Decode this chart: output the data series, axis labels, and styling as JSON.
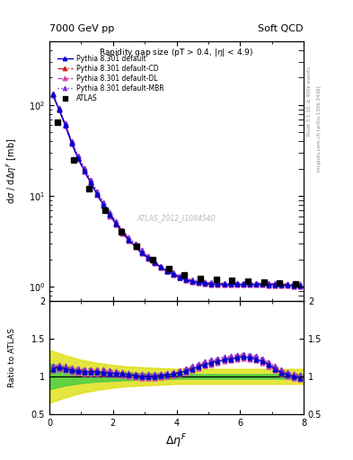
{
  "title_left": "7000 GeV pp",
  "title_right": "Soft QCD",
  "plot_title": "Rapidity gap size (pT > 0.4, |$\\eta$| < 4.9)",
  "xlabel": "$\\Delta\\eta^F$",
  "ylabel_main": "d$\\sigma$ / d$\\Delta\\eta^F$ [mb]",
  "ylabel_ratio": "Ratio to ATLAS",
  "watermark": "ATLAS_2012_I1084540",
  "right_label1": "Rivet 3.1.10, ≥ 400k events",
  "right_label2": "mcplots.cern.ch [arXiv:1306.3436]",
  "xlim": [
    0,
    8
  ],
  "ylim_main": [
    0.7,
    500
  ],
  "ylim_ratio": [
    0.5,
    2.0
  ],
  "x_atlas": [
    0.25,
    0.75,
    1.25,
    1.75,
    2.25,
    2.75,
    3.25,
    3.75,
    4.25,
    4.75,
    5.25,
    5.75,
    6.25,
    6.75,
    7.25,
    7.75
  ],
  "y_atlas": [
    65.0,
    25.0,
    12.0,
    7.0,
    4.0,
    2.8,
    2.0,
    1.6,
    1.35,
    1.25,
    1.2,
    1.18,
    1.15,
    1.12,
    1.1,
    1.08
  ],
  "x_pythia": [
    0.1,
    0.3,
    0.5,
    0.7,
    0.9,
    1.1,
    1.3,
    1.5,
    1.7,
    1.9,
    2.1,
    2.3,
    2.5,
    2.7,
    2.9,
    3.1,
    3.3,
    3.5,
    3.7,
    3.9,
    4.1,
    4.3,
    4.5,
    4.7,
    4.9,
    5.1,
    5.3,
    5.5,
    5.7,
    5.9,
    6.1,
    6.3,
    6.5,
    6.7,
    6.9,
    7.1,
    7.3,
    7.5,
    7.7,
    7.9
  ],
  "y_default": [
    130,
    90,
    60,
    38,
    26,
    19,
    14,
    10.5,
    8.0,
    6.2,
    5.0,
    4.0,
    3.3,
    2.8,
    2.4,
    2.1,
    1.85,
    1.65,
    1.5,
    1.38,
    1.28,
    1.2,
    1.15,
    1.12,
    1.1,
    1.08,
    1.07,
    1.07,
    1.07,
    1.07,
    1.07,
    1.07,
    1.07,
    1.07,
    1.06,
    1.06,
    1.05,
    1.05,
    1.04,
    1.03
  ],
  "y_cd": [
    132,
    91,
    61,
    39,
    27,
    20,
    14.5,
    11,
    8.3,
    6.4,
    5.1,
    4.1,
    3.4,
    2.9,
    2.45,
    2.12,
    1.87,
    1.67,
    1.52,
    1.4,
    1.3,
    1.22,
    1.17,
    1.14,
    1.12,
    1.1,
    1.09,
    1.09,
    1.09,
    1.09,
    1.09,
    1.09,
    1.09,
    1.09,
    1.08,
    1.08,
    1.07,
    1.07,
    1.06,
    1.05
  ],
  "y_dl": [
    129,
    89,
    59,
    37.5,
    25.5,
    18.5,
    13.7,
    10.2,
    7.8,
    6.0,
    4.85,
    3.87,
    3.2,
    2.72,
    2.33,
    2.05,
    1.82,
    1.62,
    1.47,
    1.36,
    1.26,
    1.18,
    1.13,
    1.1,
    1.08,
    1.06,
    1.05,
    1.05,
    1.05,
    1.05,
    1.05,
    1.05,
    1.05,
    1.05,
    1.04,
    1.04,
    1.03,
    1.03,
    1.02,
    1.01
  ],
  "y_mbr": [
    134,
    93,
    63,
    40,
    28,
    20.5,
    15,
    11.3,
    8.6,
    6.6,
    5.3,
    4.25,
    3.5,
    3.0,
    2.55,
    2.2,
    1.93,
    1.72,
    1.57,
    1.44,
    1.33,
    1.25,
    1.2,
    1.17,
    1.14,
    1.12,
    1.11,
    1.11,
    1.11,
    1.11,
    1.11,
    1.11,
    1.11,
    1.11,
    1.1,
    1.1,
    1.09,
    1.09,
    1.08,
    1.07
  ],
  "x_ratio": [
    0.1,
    0.3,
    0.5,
    0.7,
    0.9,
    1.1,
    1.3,
    1.5,
    1.7,
    1.9,
    2.1,
    2.3,
    2.5,
    2.7,
    2.9,
    3.1,
    3.3,
    3.5,
    3.7,
    3.9,
    4.1,
    4.3,
    4.5,
    4.7,
    4.9,
    5.1,
    5.3,
    5.5,
    5.7,
    5.9,
    6.1,
    6.3,
    6.5,
    6.7,
    6.9,
    7.1,
    7.3,
    7.5,
    7.7,
    7.9
  ],
  "ratio_default": [
    1.1,
    1.12,
    1.1,
    1.08,
    1.07,
    1.06,
    1.06,
    1.06,
    1.05,
    1.04,
    1.04,
    1.03,
    1.02,
    1.01,
    1.0,
    1.0,
    1.0,
    1.01,
    1.02,
    1.03,
    1.05,
    1.07,
    1.1,
    1.13,
    1.16,
    1.18,
    1.2,
    1.22,
    1.23,
    1.25,
    1.26,
    1.25,
    1.23,
    1.2,
    1.15,
    1.1,
    1.05,
    1.02,
    1.0,
    0.98
  ],
  "ratio_cd": [
    1.12,
    1.13,
    1.12,
    1.1,
    1.09,
    1.08,
    1.08,
    1.07,
    1.07,
    1.06,
    1.05,
    1.04,
    1.03,
    1.02,
    1.01,
    1.01,
    1.01,
    1.02,
    1.03,
    1.04,
    1.06,
    1.09,
    1.12,
    1.15,
    1.18,
    1.2,
    1.22,
    1.24,
    1.25,
    1.27,
    1.28,
    1.27,
    1.25,
    1.22,
    1.17,
    1.12,
    1.07,
    1.04,
    1.02,
    1.0
  ],
  "ratio_dl": [
    1.08,
    1.1,
    1.08,
    1.06,
    1.05,
    1.04,
    1.04,
    1.04,
    1.03,
    1.02,
    1.02,
    1.01,
    1.0,
    0.99,
    0.98,
    0.98,
    0.98,
    0.99,
    1.0,
    1.01,
    1.03,
    1.05,
    1.08,
    1.11,
    1.14,
    1.16,
    1.18,
    1.2,
    1.21,
    1.23,
    1.24,
    1.23,
    1.21,
    1.18,
    1.13,
    1.08,
    1.03,
    1.0,
    0.98,
    0.96
  ],
  "ratio_mbr": [
    1.14,
    1.15,
    1.14,
    1.12,
    1.11,
    1.1,
    1.1,
    1.09,
    1.09,
    1.08,
    1.07,
    1.06,
    1.05,
    1.04,
    1.03,
    1.03,
    1.03,
    1.04,
    1.05,
    1.06,
    1.08,
    1.11,
    1.14,
    1.17,
    1.2,
    1.22,
    1.24,
    1.26,
    1.27,
    1.29,
    1.3,
    1.29,
    1.27,
    1.24,
    1.19,
    1.14,
    1.09,
    1.06,
    1.04,
    1.02
  ],
  "x_band": [
    0,
    0.5,
    1.0,
    1.5,
    2.0,
    2.5,
    3.0,
    3.5,
    4.0,
    4.5,
    5.0,
    5.5,
    6.0,
    6.5,
    7.0,
    7.5,
    8.0
  ],
  "green_lo": [
    0.83,
    0.88,
    0.91,
    0.93,
    0.94,
    0.95,
    0.96,
    0.96,
    0.97,
    0.97,
    0.97,
    0.97,
    0.97,
    0.97,
    0.97,
    0.97,
    0.97
  ],
  "green_hi": [
    1.17,
    1.12,
    1.09,
    1.07,
    1.06,
    1.05,
    1.04,
    1.04,
    1.03,
    1.03,
    1.03,
    1.03,
    1.03,
    1.03,
    1.03,
    1.03,
    1.03
  ],
  "yellow_lo": [
    0.65,
    0.72,
    0.78,
    0.82,
    0.85,
    0.87,
    0.88,
    0.89,
    0.9,
    0.9,
    0.9,
    0.9,
    0.9,
    0.9,
    0.9,
    0.9,
    0.9
  ],
  "yellow_hi": [
    1.35,
    1.28,
    1.22,
    1.18,
    1.15,
    1.13,
    1.12,
    1.11,
    1.1,
    1.1,
    1.1,
    1.1,
    1.1,
    1.1,
    1.1,
    1.1,
    1.1
  ],
  "color_default": "#0000cc",
  "color_cd": "#cc2222",
  "color_dl": "#cc44aa",
  "color_mbr": "#8833cc",
  "color_atlas": "#000000",
  "color_green": "#44cc44",
  "color_yellow": "#dddd00"
}
